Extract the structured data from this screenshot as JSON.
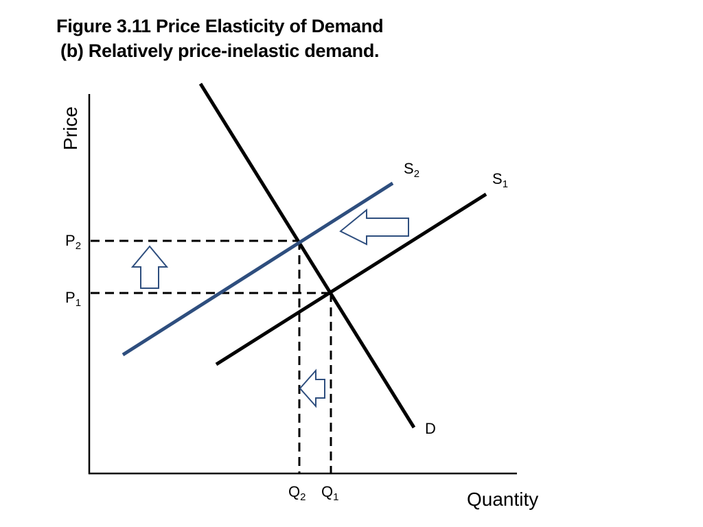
{
  "figure": {
    "title": "Figure 3.11 Price Elasticity of Demand",
    "subtitle": "(b) Relatively price-inelastic demand."
  },
  "axes": {
    "y_label": "Price",
    "x_label": "Quantity"
  },
  "curves": {
    "demand": {
      "label": "D",
      "color": "#000000"
    },
    "supply_1": {
      "label_main": "S",
      "label_sub": "1",
      "color": "#000000"
    },
    "supply_2": {
      "label_main": "S",
      "label_sub": "2",
      "color": "#2e4e7e"
    }
  },
  "levels": {
    "p1": {
      "main": "P",
      "sub": "1"
    },
    "p2": {
      "main": "P",
      "sub": "2"
    },
    "q1": {
      "main": "Q",
      "sub": "1"
    },
    "q2": {
      "main": "Q",
      "sub": "2"
    }
  },
  "shift_arrows": {
    "supply_shift": "left",
    "price_change": "up",
    "quantity_change": "left",
    "color": "#2e4e7e"
  }
}
